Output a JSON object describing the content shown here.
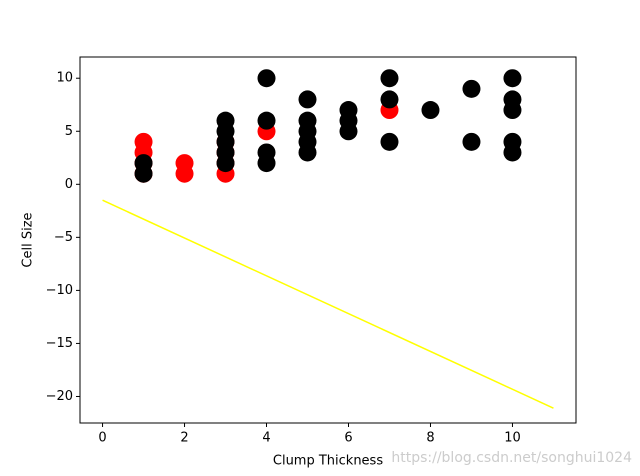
{
  "chart_data": {
    "type": "scatter",
    "xlabel": "Clump Thickness",
    "ylabel": "Cell Size",
    "xlim": [
      -0.55,
      11.55
    ],
    "ylim": [
      -22.5,
      12
    ],
    "xticks": [
      0,
      2,
      4,
      6,
      8,
      10
    ],
    "yticks": [
      {
        "value": -20,
        "label": "−20"
      },
      {
        "value": -15,
        "label": "−15"
      },
      {
        "value": -10,
        "label": "−10"
      },
      {
        "value": -5,
        "label": "−5"
      },
      0,
      5,
      10
    ],
    "series": [
      {
        "type": "scatter",
        "color": "#ff0000",
        "x": [
          1,
          1,
          1,
          1,
          2,
          2,
          3,
          3,
          3,
          3,
          4,
          7
        ],
        "values": [
          1,
          2,
          3,
          4,
          1,
          2,
          1,
          2,
          3,
          4,
          5,
          7
        ]
      },
      {
        "type": "scatter",
        "color": "#000000",
        "x": [
          1,
          1,
          3,
          3,
          3,
          3,
          3,
          4,
          4,
          4,
          4,
          5,
          5,
          5,
          5,
          5,
          6,
          6,
          6,
          7,
          7,
          7,
          8,
          9,
          9,
          10,
          10,
          10,
          10,
          10
        ],
        "values": [
          1,
          2,
          2,
          3,
          4,
          5,
          6,
          2,
          3,
          6,
          10,
          3,
          4,
          5,
          6,
          8,
          5,
          6,
          7,
          4,
          8,
          10,
          7,
          4,
          9,
          3,
          4,
          7,
          8,
          10
        ]
      },
      {
        "type": "line",
        "color": "#ffff00",
        "x": [
          0,
          11
        ],
        "values": [
          -1.5,
          -21.1
        ]
      }
    ],
    "annotation": "https://blog.csdn.net/songhui1024"
  }
}
